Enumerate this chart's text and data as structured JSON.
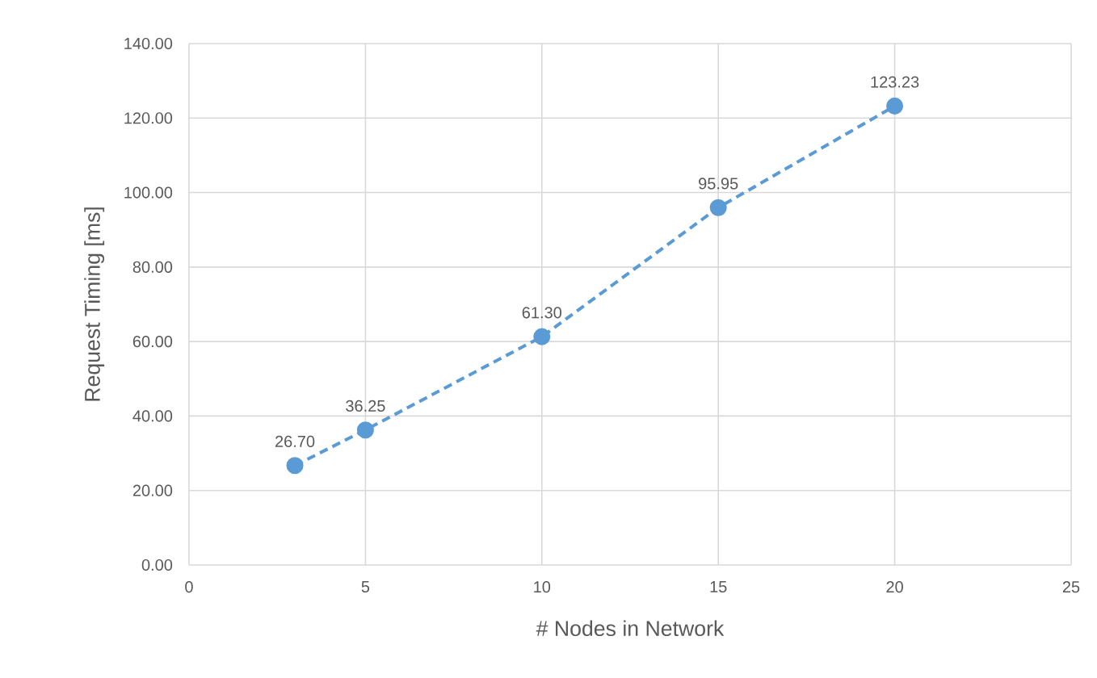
{
  "chart_data": {
    "type": "line",
    "xlabel": "# Nodes in Network",
    "ylabel": "Request Timing [ms]",
    "x": [
      3,
      5,
      10,
      15,
      20
    ],
    "series": [
      {
        "color": "#5b9bd5",
        "values": [
          26.7,
          36.25,
          61.3,
          95.95,
          123.23
        ],
        "value_labels": [
          "26.70",
          "36.25",
          "61.30",
          "95.95",
          "123.23"
        ]
      }
    ],
    "xlim": [
      0,
      25
    ],
    "xticks": [
      0,
      5,
      10,
      15,
      20,
      25
    ],
    "ylim": [
      0,
      140
    ],
    "yticks": [
      {
        "value": 0,
        "label": "0.00"
      },
      {
        "value": 20,
        "label": "20.00"
      },
      {
        "value": 40,
        "label": "40.00"
      },
      {
        "value": 60,
        "label": "60.00"
      },
      {
        "value": 80,
        "label": "80.00"
      },
      {
        "value": 100,
        "label": "100.00"
      },
      {
        "value": 120,
        "label": "120.00"
      },
      {
        "value": 140,
        "label": "140.00"
      }
    ],
    "grid": true,
    "marker": "circle",
    "line_style": "dashed"
  }
}
